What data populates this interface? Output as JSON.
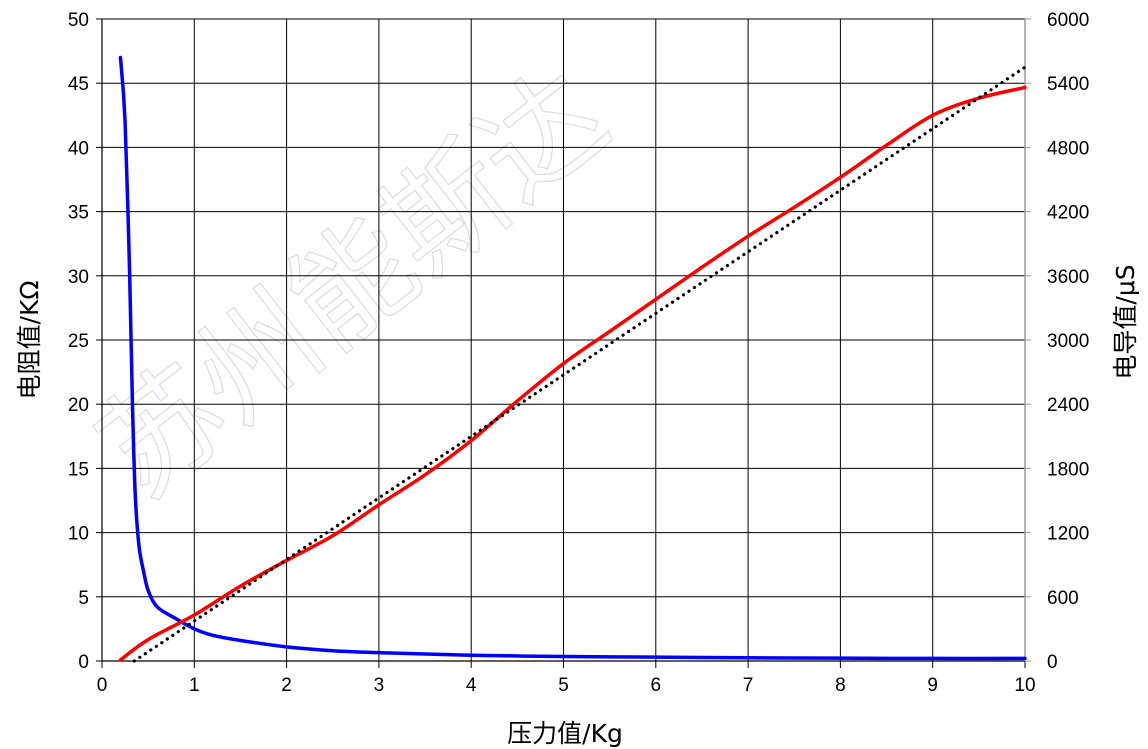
{
  "chart_data": {
    "type": "line",
    "xlabel": "压力值/Kg",
    "ylabel": "电阻值/KΩ",
    "y2label": "电导值/μS",
    "xlim": [
      0,
      10
    ],
    "ylim": [
      0,
      50
    ],
    "y2lim": [
      0,
      6000
    ],
    "x_ticks": [
      "0",
      "1",
      "2",
      "3",
      "4",
      "5",
      "6",
      "7",
      "8",
      "9",
      "10"
    ],
    "y_ticks": [
      "0",
      "5",
      "10",
      "15",
      "20",
      "25",
      "30",
      "35",
      "40",
      "45",
      "50"
    ],
    "y2_ticks": [
      "0",
      "600",
      "1200",
      "1800",
      "2400",
      "3000",
      "3600",
      "4200",
      "4800",
      "5400",
      "6000"
    ],
    "grid": true,
    "watermark": "苏州能斯达",
    "series": [
      {
        "axis": "left",
        "color": "#0000ff",
        "x": [
          0.2,
          0.25,
          0.3,
          0.33,
          0.36,
          0.4,
          0.45,
          0.5,
          0.6,
          0.8,
          1.0,
          1.2,
          1.5,
          2.0,
          2.5,
          3.0,
          4.0,
          5.0,
          6.0,
          7.0,
          8.0,
          9.0,
          10.0
        ],
        "y": [
          47,
          42,
          30,
          20,
          13,
          9,
          7,
          5.5,
          4.2,
          3.3,
          2.5,
          2.0,
          1.6,
          1.1,
          0.8,
          0.65,
          0.45,
          0.35,
          0.3,
          0.25,
          0.22,
          0.2,
          0.2
        ]
      },
      {
        "axis": "right",
        "color": "#ff0000",
        "x": [
          0.2,
          0.5,
          1.0,
          1.5,
          2.0,
          2.5,
          3.0,
          3.5,
          4.0,
          4.5,
          5.0,
          5.5,
          6.0,
          6.5,
          7.0,
          7.5,
          8.0,
          8.5,
          9.0,
          9.5,
          10.0
        ],
        "y": [
          10,
          200,
          430,
          700,
          940,
          1170,
          1460,
          1740,
          2060,
          2430,
          2780,
          3080,
          3380,
          3680,
          3970,
          4240,
          4520,
          4820,
          5100,
          5260,
          5360
        ]
      },
      {
        "axis": "right",
        "color": "#000000",
        "style": "dotted",
        "x": [
          0.35,
          10.0
        ],
        "y": [
          0,
          5550
        ]
      }
    ]
  }
}
